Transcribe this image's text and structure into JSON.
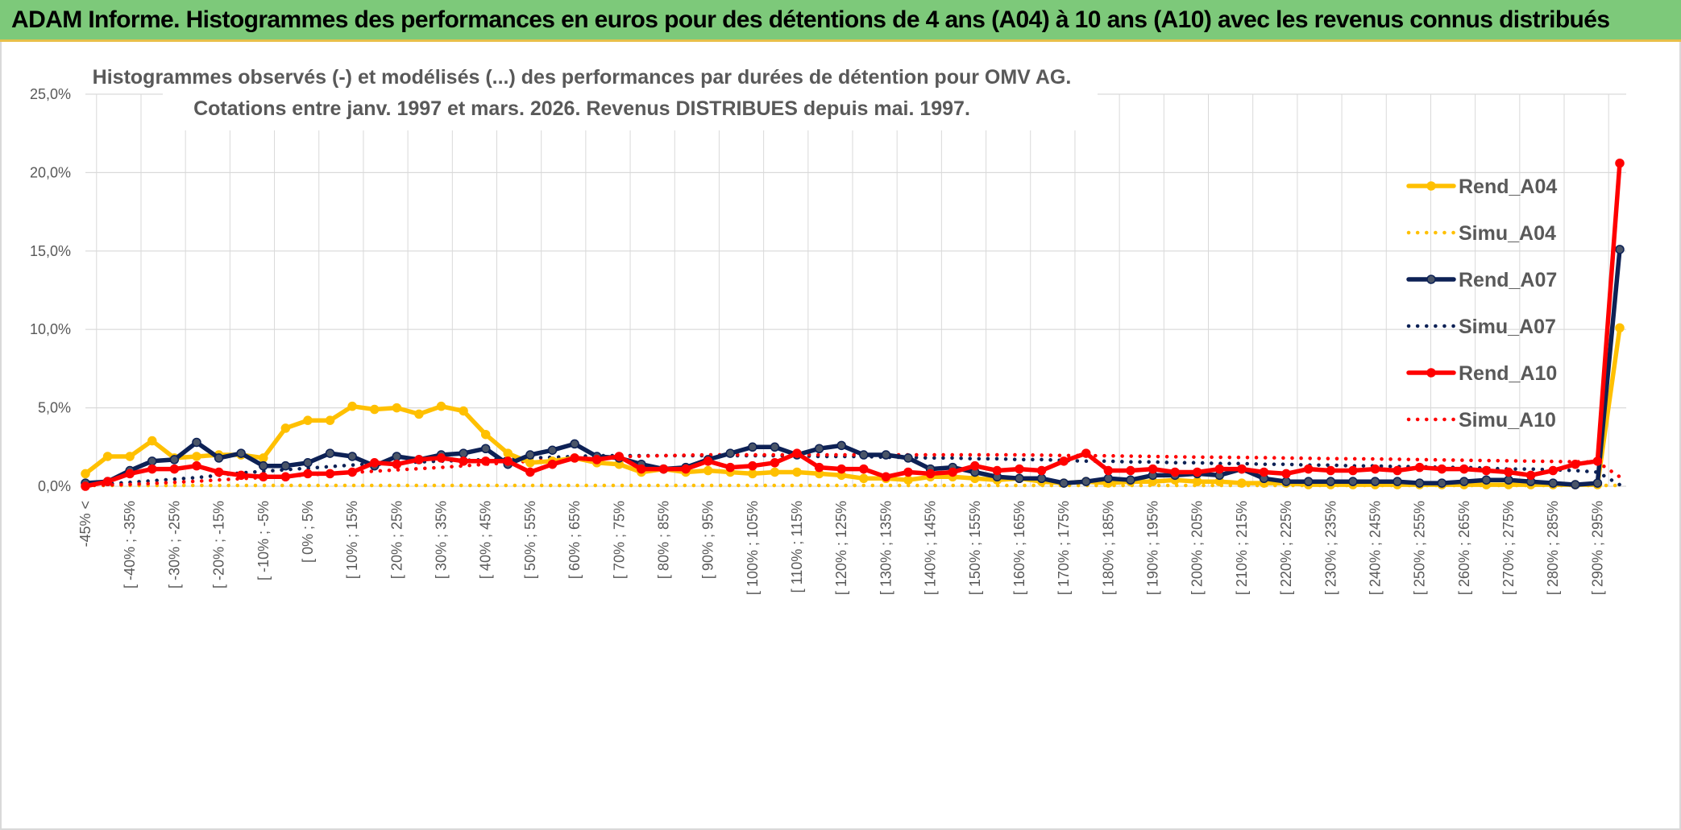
{
  "banner": {
    "title": "ADAM Informe. Histogrammes des performances en euros pour des détentions de 4 ans (A04) à 10 ans (A10) avec les revenus connus distribués"
  },
  "chart_data": {
    "type": "line",
    "title_line1": "Histogrammes observés (-) et modélisés (...) des performances par durées de détention pour OMV AG.",
    "title_line2": "Cotations entre janv. 1997 et mars. 2026. Revenus DISTRIBUES depuis mai. 1997.",
    "xlabel": "",
    "ylabel": "",
    "ylim": [
      0,
      25
    ],
    "yticks": [
      "0,0%",
      "5,0%",
      "10,0%",
      "15,0%",
      "20,0%",
      "25,0%"
    ],
    "grid": true,
    "legend_position": "right",
    "x_labels_shown": [
      "-45% <",
      "[ -40% ; -35%",
      "[ -30% ; -25%",
      "[ -20% ; -15%",
      "[ -10% ; -5%",
      "[ 0% ; 5%",
      "[ 10% ; 15%",
      "[ 20% ; 25%",
      "[ 30% ; 35%",
      "[ 40% ; 45%",
      "[ 50% ; 55%",
      "[ 60% ; 65%",
      "[ 70% ; 75%",
      "[ 80% ; 85%",
      "[ 90% ; 95%",
      "[ 100% ; 105%",
      "[ 110% ; 115%",
      "[ 120% ; 125%",
      "[ 130% ; 135%",
      "[ 140% ; 145%",
      "[ 150% ; 155%",
      "[ 160% ; 165%",
      "[ 170% ; 175%",
      "[ 180% ; 185%",
      "[ 190% ; 195%",
      "[ 200% ; 205%",
      "[ 210% ; 215%",
      "[ 220% ; 225%",
      "[ 230% ; 235%",
      "[ 240% ; 245%",
      "[ 250% ; 255%",
      "[ 260% ; 265%",
      "[ 270% ; 275%",
      "[ 280% ; 285%",
      "[ 290% ; 295%"
    ],
    "num_bins": 70,
    "series": [
      {
        "name": "Rend_A04",
        "color": "#FFC000",
        "style": "solid",
        "markers": true,
        "values": [
          0.8,
          1.9,
          1.9,
          2.9,
          1.8,
          1.9,
          2.0,
          2.0,
          1.8,
          3.7,
          4.2,
          4.2,
          5.1,
          4.9,
          5.0,
          4.6,
          5.1,
          4.8,
          3.3,
          2.1,
          1.5,
          1.6,
          1.8,
          1.5,
          1.4,
          0.9,
          1.1,
          0.9,
          1.0,
          0.9,
          0.8,
          0.9,
          0.9,
          0.8,
          0.7,
          0.5,
          0.5,
          0.4,
          0.6,
          0.6,
          0.5,
          0.4,
          0.5,
          0.3,
          0.2,
          0.3,
          0.2,
          0.3,
          0.3,
          0.4,
          0.3,
          0.3,
          0.2,
          0.2,
          0.2,
          0.1,
          0.1,
          0.1,
          0.1,
          0.1,
          0.1,
          0.1,
          0.1,
          0.1,
          0.1,
          0.1,
          0.1,
          0.1,
          0.1,
          10.1
        ]
      },
      {
        "name": "Simu_A04",
        "color": "#FFC000",
        "style": "dotted",
        "markers": false,
        "values": [
          0.05,
          0.05,
          0.05,
          0.05,
          0.05,
          0.05,
          0.05,
          0.05,
          0.05,
          0.05,
          0.05,
          0.05,
          0.05,
          0.05,
          0.05,
          0.05,
          0.05,
          0.05,
          0.05,
          0.05,
          0.05,
          0.05,
          0.05,
          0.05,
          0.05,
          0.05,
          0.05,
          0.05,
          0.05,
          0.05,
          0.05,
          0.05,
          0.05,
          0.05,
          0.05,
          0.05,
          0.05,
          0.05,
          0.05,
          0.05,
          0.05,
          0.05,
          0.05,
          0.05,
          0.05,
          0.05,
          0.05,
          0.05,
          0.05,
          0.05,
          0.05,
          0.05,
          0.05,
          0.05,
          0.05,
          0.05,
          0.05,
          0.05,
          0.05,
          0.05,
          0.05,
          0.05,
          0.05,
          0.05,
          0.05,
          0.05,
          0.05,
          0.05,
          0.05,
          0.05
        ]
      },
      {
        "name": "Rend_A07",
        "color": "#0D2155",
        "style": "solid",
        "markers": true,
        "values": [
          0.2,
          0.3,
          1.0,
          1.6,
          1.7,
          2.8,
          1.8,
          2.1,
          1.3,
          1.3,
          1.5,
          2.1,
          1.9,
          1.3,
          1.9,
          1.7,
          2.0,
          2.1,
          2.4,
          1.4,
          2.0,
          2.3,
          2.7,
          1.9,
          1.8,
          1.4,
          1.1,
          1.2,
          1.7,
          2.1,
          2.5,
          2.5,
          2.0,
          2.4,
          2.6,
          2.0,
          2.0,
          1.8,
          1.1,
          1.2,
          0.9,
          0.6,
          0.5,
          0.5,
          0.2,
          0.3,
          0.5,
          0.4,
          0.7,
          0.7,
          0.8,
          0.7,
          1.1,
          0.5,
          0.3,
          0.3,
          0.3,
          0.3,
          0.3,
          0.3,
          0.2,
          0.2,
          0.3,
          0.4,
          0.4,
          0.3,
          0.2,
          0.1,
          0.2,
          15.1
        ]
      },
      {
        "name": "Simu_A07",
        "color": "#0D2155",
        "style": "dotted",
        "markers": false,
        "values": [
          0.1,
          0.15,
          0.25,
          0.35,
          0.45,
          0.55,
          0.7,
          0.85,
          0.95,
          1.05,
          1.15,
          1.25,
          1.35,
          1.45,
          1.5,
          1.55,
          1.6,
          1.65,
          1.7,
          1.75,
          1.8,
          1.85,
          1.9,
          1.95,
          1.95,
          1.95,
          1.95,
          1.95,
          1.95,
          1.95,
          1.95,
          1.95,
          1.95,
          1.9,
          1.9,
          1.9,
          1.85,
          1.85,
          1.8,
          1.8,
          1.75,
          1.75,
          1.7,
          1.7,
          1.65,
          1.6,
          1.6,
          1.55,
          1.55,
          1.5,
          1.5,
          1.45,
          1.45,
          1.4,
          1.4,
          1.35,
          1.35,
          1.3,
          1.3,
          1.25,
          1.25,
          1.2,
          1.2,
          1.15,
          1.1,
          1.1,
          1.05,
          1.0,
          0.9,
          0.1
        ]
      },
      {
        "name": "Rend_A10",
        "color": "#FF0000",
        "style": "solid",
        "markers": true,
        "values": [
          0.0,
          0.3,
          0.8,
          1.1,
          1.1,
          1.3,
          0.9,
          0.7,
          0.6,
          0.6,
          0.8,
          0.8,
          0.9,
          1.5,
          1.4,
          1.7,
          1.8,
          1.6,
          1.6,
          1.6,
          0.9,
          1.4,
          1.8,
          1.7,
          1.9,
          1.1,
          1.1,
          1.1,
          1.6,
          1.2,
          1.3,
          1.5,
          2.1,
          1.2,
          1.1,
          1.1,
          0.6,
          0.9,
          0.8,
          0.9,
          1.3,
          1.0,
          1.1,
          1.0,
          1.6,
          2.1,
          1.0,
          1.0,
          1.1,
          0.9,
          0.9,
          1.1,
          1.1,
          0.9,
          0.8,
          1.1,
          1.0,
          1.0,
          1.1,
          1.0,
          1.2,
          1.1,
          1.1,
          1.0,
          0.9,
          0.7,
          1.0,
          1.4,
          1.6,
          20.6
        ]
      },
      {
        "name": "Simu_A10",
        "color": "#FF0000",
        "style": "dotted",
        "markers": false,
        "values": [
          0.05,
          0.08,
          0.12,
          0.18,
          0.25,
          0.32,
          0.4,
          0.48,
          0.56,
          0.64,
          0.72,
          0.8,
          0.88,
          0.96,
          1.04,
          1.12,
          1.2,
          1.3,
          1.4,
          1.5,
          1.6,
          1.68,
          1.75,
          1.82,
          1.88,
          1.92,
          1.95,
          1.98,
          2.0,
          2.0,
          2.0,
          2.0,
          2.0,
          2.0,
          2.0,
          2.0,
          2.0,
          2.0,
          2.0,
          2.0,
          2.0,
          2.0,
          2.0,
          1.98,
          1.96,
          1.95,
          1.94,
          1.92,
          1.9,
          1.88,
          1.86,
          1.85,
          1.84,
          1.82,
          1.8,
          1.78,
          1.76,
          1.75,
          1.74,
          1.72,
          1.7,
          1.68,
          1.66,
          1.64,
          1.62,
          1.6,
          1.58,
          1.56,
          1.54,
          0.6
        ]
      }
    ]
  }
}
